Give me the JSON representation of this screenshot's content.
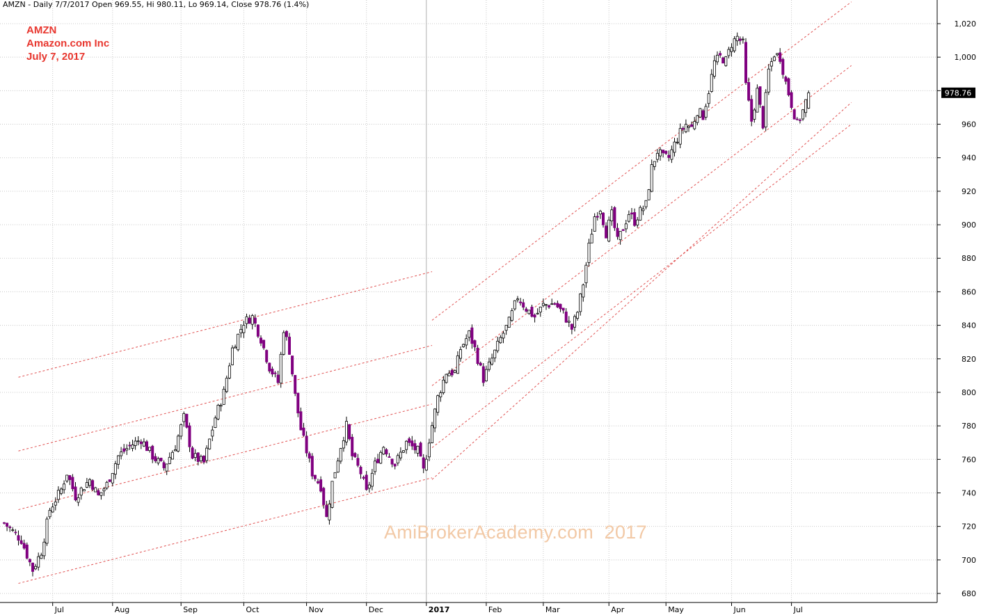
{
  "header": {
    "text": "AMZN - Daily 7/7/2017 Open 969.55, Hi 980.11, Lo 969.14, Close 978.76 (1.4%)"
  },
  "annotation": {
    "lines": [
      "AMZN",
      "Amazon.com Inc",
      "July 7, 2017"
    ],
    "color": "#e8362e"
  },
  "watermark": "AmiBrokerAcademy.com  2017",
  "last_price": {
    "label": "978.76",
    "value": 978.76
  },
  "colors": {
    "up_body": "#ffffff",
    "down_body": "#800080",
    "wick": "#000000",
    "grid": "#c8c8c8",
    "trendline": "#e05050"
  },
  "chart_data": {
    "type": "candlestick",
    "symbol": "AMZN",
    "ylim": [
      672,
      1028
    ],
    "y_ticks": [
      680,
      700,
      720,
      740,
      760,
      780,
      800,
      820,
      840,
      860,
      880,
      900,
      920,
      940,
      960,
      980,
      1000,
      1020
    ],
    "y_tick_labels": [
      "680",
      "700",
      "720",
      "740",
      "760",
      "780",
      "800",
      "820",
      "840",
      "860",
      "880",
      "900",
      "920",
      "940",
      "960",
      "",
      "1,000",
      "1,020"
    ],
    "x_labels": [
      {
        "label": "Jul",
        "idx": 17,
        "bold": false
      },
      {
        "label": "Aug",
        "idx": 38,
        "bold": false
      },
      {
        "label": "Sep",
        "idx": 62,
        "bold": false
      },
      {
        "label": "Oct",
        "idx": 84,
        "bold": false
      },
      {
        "label": "Nov",
        "idx": 106,
        "bold": false
      },
      {
        "label": "Dec",
        "idx": 127,
        "bold": false
      },
      {
        "label": "2017",
        "idx": 148,
        "bold": true
      },
      {
        "label": "Feb",
        "idx": 169,
        "bold": false
      },
      {
        "label": "Mar",
        "idx": 189,
        "bold": false
      },
      {
        "label": "Apr",
        "idx": 212,
        "bold": false
      },
      {
        "label": "May",
        "idx": 232,
        "bold": false
      },
      {
        "label": "Jun",
        "idx": 255,
        "bold": false
      },
      {
        "label": "Jul",
        "idx": 276,
        "bold": false
      }
    ],
    "keypoints": [
      [
        0,
        722
      ],
      [
        6,
        712
      ],
      [
        10,
        694
      ],
      [
        13,
        705
      ],
      [
        16,
        730
      ],
      [
        20,
        742
      ],
      [
        22,
        752
      ],
      [
        25,
        738
      ],
      [
        30,
        748
      ],
      [
        33,
        738
      ],
      [
        36,
        745
      ],
      [
        40,
        762
      ],
      [
        44,
        768
      ],
      [
        48,
        772
      ],
      [
        52,
        762
      ],
      [
        56,
        755
      ],
      [
        60,
        768
      ],
      [
        63,
        785
      ],
      [
        66,
        762
      ],
      [
        70,
        758
      ],
      [
        74,
        785
      ],
      [
        77,
        800
      ],
      [
        80,
        826
      ],
      [
        84,
        842
      ],
      [
        87,
        845
      ],
      [
        90,
        832
      ],
      [
        93,
        815
      ],
      [
        96,
        806
      ],
      [
        98,
        838
      ],
      [
        100,
        825
      ],
      [
        102,
        798
      ],
      [
        104,
        778
      ],
      [
        106,
        765
      ],
      [
        108,
        752
      ],
      [
        111,
        744
      ],
      [
        113,
        725
      ],
      [
        115,
        746
      ],
      [
        118,
        768
      ],
      [
        120,
        780
      ],
      [
        122,
        762
      ],
      [
        125,
        752
      ],
      [
        127,
        740
      ],
      [
        130,
        757
      ],
      [
        133,
        768
      ],
      [
        137,
        757
      ],
      [
        141,
        770
      ],
      [
        145,
        765
      ],
      [
        147,
        753
      ],
      [
        149,
        772
      ],
      [
        152,
        797
      ],
      [
        155,
        812
      ],
      [
        158,
        812
      ],
      [
        160,
        826
      ],
      [
        163,
        835
      ],
      [
        165,
        826
      ],
      [
        168,
        808
      ],
      [
        171,
        820
      ],
      [
        174,
        832
      ],
      [
        177,
        842
      ],
      [
        180,
        857
      ],
      [
        183,
        850
      ],
      [
        186,
        845
      ],
      [
        189,
        852
      ],
      [
        193,
        853
      ],
      [
        196,
        847
      ],
      [
        199,
        838
      ],
      [
        201,
        848
      ],
      [
        203,
        865
      ],
      [
        205,
        887
      ],
      [
        207,
        905
      ],
      [
        209,
        910
      ],
      [
        211,
        895
      ],
      [
        213,
        906
      ],
      [
        215,
        890
      ],
      [
        217,
        898
      ],
      [
        219,
        907
      ],
      [
        221,
        902
      ],
      [
        223,
        908
      ],
      [
        225,
        912
      ],
      [
        227,
        934
      ],
      [
        229,
        944
      ],
      [
        231,
        940
      ],
      [
        233,
        940
      ],
      [
        235,
        948
      ],
      [
        237,
        955
      ],
      [
        239,
        960
      ],
      [
        241,
        958
      ],
      [
        243,
        968
      ],
      [
        245,
        965
      ],
      [
        247,
        980
      ],
      [
        249,
        997
      ],
      [
        251,
        1000
      ],
      [
        253,
        998
      ],
      [
        255,
        1008
      ],
      [
        257,
        1012
      ],
      [
        259,
        1008
      ],
      [
        260,
        983
      ],
      [
        262,
        962
      ],
      [
        264,
        980
      ],
      [
        266,
        960
      ],
      [
        268,
        992
      ],
      [
        270,
        1002
      ],
      [
        272,
        1000
      ],
      [
        274,
        985
      ],
      [
        276,
        972
      ],
      [
        278,
        960
      ],
      [
        280,
        968
      ],
      [
        282,
        978.76
      ]
    ],
    "last_candle": {
      "open": 969.55,
      "high": 980.11,
      "low": 969.14,
      "close": 978.76
    },
    "trend_channels": [
      {
        "name": "channel-2016-upper",
        "points": [
          [
            5,
            809
          ],
          [
            150,
            872
          ]
        ]
      },
      {
        "name": "channel-2016-line2",
        "points": [
          [
            5,
            765
          ],
          [
            150,
            828
          ]
        ]
      },
      {
        "name": "channel-2016-line3",
        "points": [
          [
            5,
            730
          ],
          [
            150,
            793
          ]
        ]
      },
      {
        "name": "channel-2016-lower",
        "points": [
          [
            5,
            686
          ],
          [
            150,
            749
          ]
        ]
      },
      {
        "name": "channel-2017-upper",
        "points": [
          [
            150,
            843
          ],
          [
            297,
            1033
          ]
        ]
      },
      {
        "name": "channel-2017-line2",
        "points": [
          [
            150,
            804
          ],
          [
            297,
            995
          ]
        ]
      },
      {
        "name": "channel-2017-line3",
        "points": [
          [
            150,
            767
          ],
          [
            297,
            960
          ]
        ]
      },
      {
        "name": "channel-2017-lower",
        "points": [
          [
            150,
            748
          ],
          [
            297,
            973
          ]
        ]
      }
    ]
  }
}
